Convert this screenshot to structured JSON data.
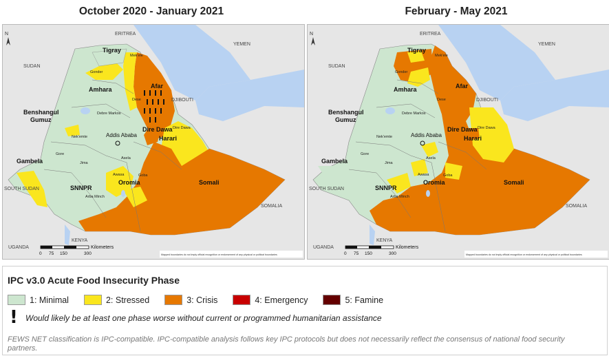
{
  "maps": [
    {
      "title": "October 2020 - January 2021",
      "regions": {
        "tigray": "Tigray",
        "afar": "Afar",
        "amhara": "Amhara",
        "benshangul": "Benshangul",
        "gumuz": "Gumuz",
        "gambela": "Gambela",
        "snnpr": "SNNPR",
        "oromia": "Oromia",
        "somali": "Somali",
        "dire_dawa": "Dire Dawa",
        "harari": "Harari",
        "addis": "Addis Ababa"
      },
      "places": {
        "eritrea": "ERITREA",
        "yemen": "YEMEN",
        "sudan": "SUDAN",
        "djibouti": "DJIBOUTI",
        "south_sudan": "SOUTH SUDAN",
        "somalia": "SOMALIA",
        "uganda": "UGANDA",
        "kenya": "KENYA"
      },
      "towns": {
        "mekele": "Mek'ele",
        "gonder": "Gonder",
        "debre_markos": "Debre Markos",
        "dese": "Dese",
        "nekemte": "Nek'emte",
        "gore": "Gore",
        "jima": "Jima",
        "asela": "Asela",
        "awasa": "Awasa",
        "goba": "Goba",
        "arba_minch": "Arba Minch",
        "dire_dawa_town": "Dire Dawa"
      },
      "scale": {
        "unit": "Kilometers",
        "ticks": [
          "0",
          "75",
          "150",
          "300"
        ]
      },
      "disclaimer": "Mapped boundaries do not imply official recognition or endorsement of any physical or political boundaries",
      "north": "N"
    },
    {
      "title": "February - May 2021",
      "regions": {
        "tigray": "Tigray",
        "afar": "Afar",
        "amhara": "Amhara",
        "benshangul": "Benshangul",
        "gumuz": "Gumuz",
        "gambela": "Gambela",
        "snnpr": "SNNPR",
        "oromia": "Oromia",
        "somali": "Somali",
        "dire_dawa": "Dire Dawa",
        "harari": "Harari",
        "addis": "Addis Ababa"
      },
      "places": {
        "eritrea": "ERITREA",
        "yemen": "YEMEN",
        "sudan": "SUDAN",
        "djibouti": "DJIBOUTI",
        "south_sudan": "SOUTH SUDAN",
        "somalia": "SOMALIA",
        "uganda": "UGANDA",
        "kenya": "KENYA"
      },
      "towns": {
        "mekele": "Mek'ele",
        "gonder": "Gonder",
        "debre_markos": "Debre Markos",
        "dese": "Dese",
        "nekemte": "Nek'emte",
        "gore": "Gore",
        "jima": "Jima",
        "asela": "Asela",
        "awasa": "Awasa",
        "goba": "Goba",
        "arba_minch": "Arba Minch",
        "dire_dawa_town": "Dire Dawa"
      },
      "scale": {
        "unit": "Kilometers",
        "ticks": [
          "0",
          "75",
          "150",
          "300"
        ]
      },
      "disclaimer": "Mapped boundaries do not imply official recognition or endorsement of any physical or political boundaries",
      "north": "N"
    }
  ],
  "legend": {
    "title": "IPC v3.0 Acute Food Insecurity Phase",
    "items": [
      {
        "label": "1: Minimal",
        "color": "#cde6cf"
      },
      {
        "label": "2: Stressed",
        "color": "#fae61e"
      },
      {
        "label": "3: Crisis",
        "color": "#e67800"
      },
      {
        "label": "4: Emergency",
        "color": "#c80000"
      },
      {
        "label": "5: Famine",
        "color": "#640000"
      }
    ],
    "assistance_mark": "!",
    "assistance_note": "Would likely be at least one phase worse without current or programmed humanitarian assistance",
    "footer": "FEWS NET classification is IPC-compatible. IPC-compatible analysis follows key IPC protocols but does not necessarily reflect the consensus of national food security partners."
  },
  "colors": {
    "minimal": "#cde6cf",
    "stressed": "#fae61e",
    "crisis": "#e67800",
    "water": "#b8d2f2",
    "neighbor_land": "#e6e6e6"
  }
}
